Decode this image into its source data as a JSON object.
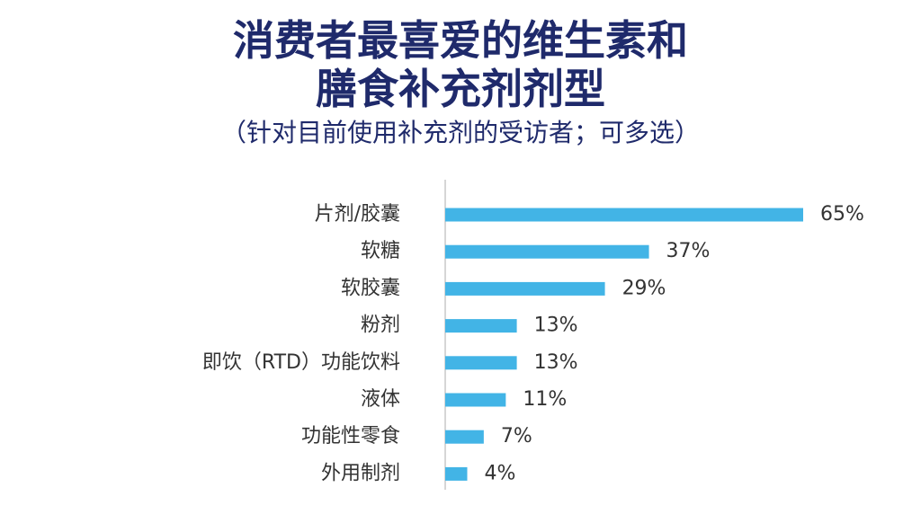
{
  "chart_data": {
    "type": "bar",
    "orientation": "horizontal",
    "title_lines": [
      "消费者最喜爱的维生素和",
      "膳食补充剂剂型"
    ],
    "subtitle": "（针对目前使用补充剂的受访者；可多选）",
    "categories": [
      "片剂/胶囊",
      "软糖",
      "软胶囊",
      "粉剂",
      "即饮（RTD）功能饮料",
      "液体",
      "功能性零食",
      "外用制剂"
    ],
    "values": [
      65,
      37,
      29,
      13,
      13,
      11,
      7,
      4
    ],
    "value_labels": [
      "65%",
      "37%",
      "29%",
      "13%",
      "13%",
      "11%",
      "7%",
      "4%"
    ],
    "xlim": [
      0,
      65
    ],
    "bar_color": "#42b4e6",
    "axis_color": "#c8c8c8",
    "grid": false,
    "legend": "none"
  }
}
